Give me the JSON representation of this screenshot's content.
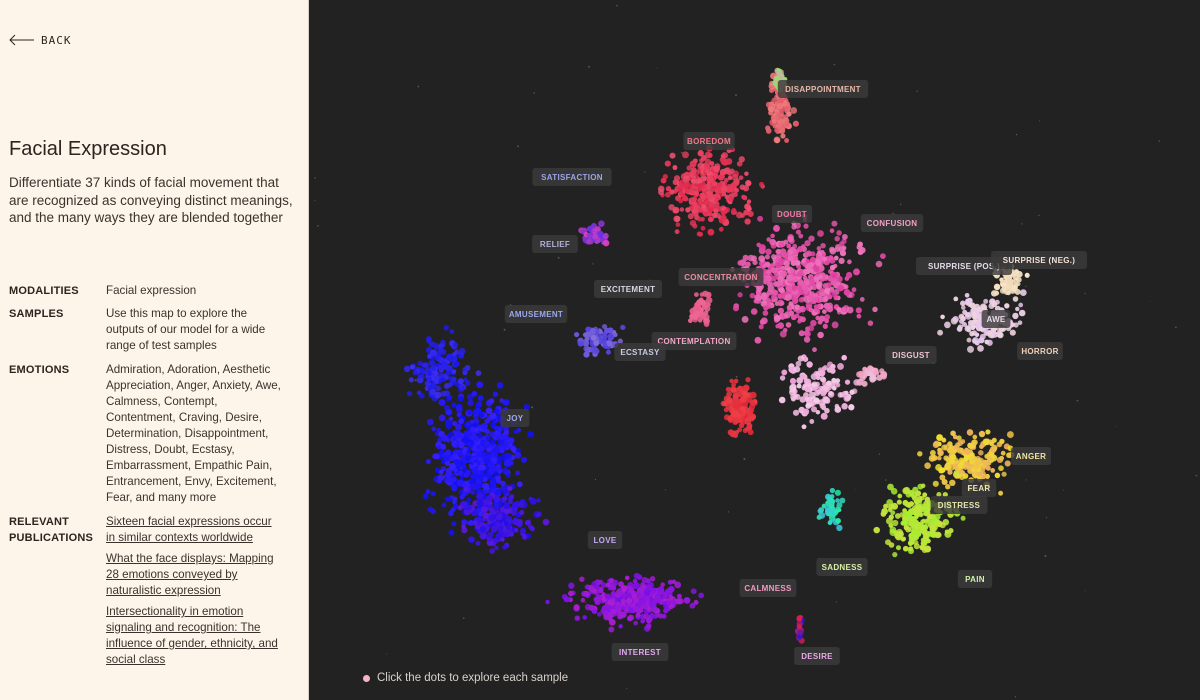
{
  "nav": {
    "back_label": "BACK"
  },
  "title": "Facial Expression",
  "description": "Differentiate 37 kinds of facial movement that are recognized as conveying distinct meanings, and the many ways they are blended together",
  "details": {
    "modalities_label": "MODALITIES",
    "modalities_value": "Facial expression",
    "samples_label": "SAMPLES",
    "samples_value": "Use this map to explore the outputs of our model for a wide range of test samples",
    "emotions_label": "EMOTIONS",
    "emotions_value": "Admiration, Adoration, Aesthetic Appreciation, Anger, Anxiety, Awe, Calmness, Contempt, Contentment, Craving, Desire, Determination, Disappointment, Distress, Doubt, Ecstasy, Embarrassment, Empathic Pain, Entrancement, Envy, Excitement, Fear, and many more",
    "publications_label": "RELEVANT PUBLICATIONS",
    "publications": [
      "Sixteen facial expressions occur in similar contexts worldwide",
      "What the face displays: Mapping 28 emotions conveyed by naturalistic expression",
      "Intersectionality in emotion signaling and recognition: The influence of gender, ethnicity, and social class"
    ]
  },
  "map": {
    "hint": "Click the dots to explore each sample",
    "labels": [
      {
        "text": "DISAPPOINTMENT",
        "color": "#e8b8a8"
      },
      {
        "text": "BOREDOM",
        "color": "#f0788a"
      },
      {
        "text": "SATISFACTION",
        "color": "#9aa4e8"
      },
      {
        "text": "DOUBT",
        "color": "#f07aa8"
      },
      {
        "text": "CONFUSION",
        "color": "#f2a0c8"
      },
      {
        "text": "RELIEF",
        "color": "#b0b0d8"
      },
      {
        "text": "CONCENTRATION",
        "color": "#f08aa0"
      },
      {
        "text": "SURPRISE (POS.)",
        "color": "#e6dcea"
      },
      {
        "text": "SURPRISE (NEG.)",
        "color": "#f0e0d8"
      },
      {
        "text": "EXCITEMENT",
        "color": "#d6d8e8"
      },
      {
        "text": "AMUSEMENT",
        "color": "#9aa8ee"
      },
      {
        "text": "AWE",
        "color": "#e6dcea"
      },
      {
        "text": "CONTEMPLATION",
        "color": "#f2a6c8"
      },
      {
        "text": "ECSTASY",
        "color": "#c8cce6"
      },
      {
        "text": "DISGUST",
        "color": "#f0c0d0"
      },
      {
        "text": "HORROR",
        "color": "#f0d0b8"
      },
      {
        "text": "JOY",
        "color": "#a0a8f0"
      },
      {
        "text": "ANGER",
        "color": "#f0e6a0"
      },
      {
        "text": "FEAR",
        "color": "#f0e8b8"
      },
      {
        "text": "DISTRESS",
        "color": "#e8e6b0"
      },
      {
        "text": "LOVE",
        "color": "#c0a8f0"
      },
      {
        "text": "SADNESS",
        "color": "#d8f0a8"
      },
      {
        "text": "CALMNESS",
        "color": "#f09ac0"
      },
      {
        "text": "PAIN",
        "color": "#d0f0a8"
      },
      {
        "text": "INTEREST",
        "color": "#e0a8f0"
      },
      {
        "text": "DESIRE",
        "color": "#e8a8e8"
      }
    ]
  }
}
